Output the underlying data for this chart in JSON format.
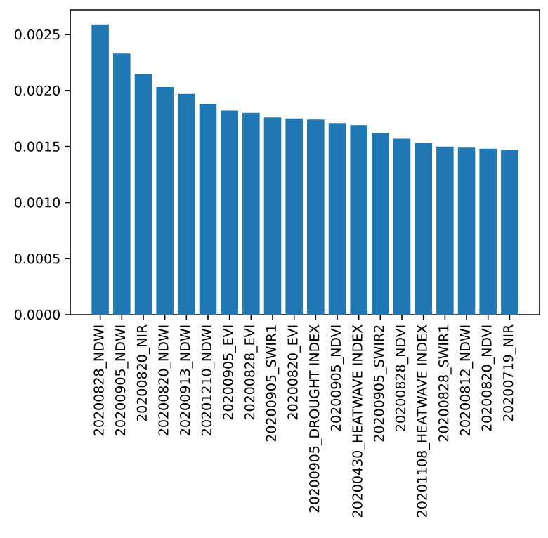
{
  "chart_data": {
    "type": "bar",
    "color": "#1f77b4",
    "categories": [
      "20200828_NDWI",
      "20200905_NDWI",
      "20200820_NIR",
      "20200820_NDWI",
      "20200913_NDWI",
      "20201210_NDWI",
      "20200905_EVI",
      "20200828_EVI",
      "20200905_SWIR1",
      "20200820_EVI",
      "20200905_DROUGHT INDEX",
      "20200905_NDVI",
      "20200430_HEATWAVE INDEX",
      "20200905_SWIR2",
      "20200828_NDVI",
      "20201108_HEATWAVE INDEX",
      "20200828_SWIR1",
      "20200812_NDWI",
      "20200820_NDVI",
      "20200719_NIR"
    ],
    "values": [
      0.00259,
      0.00233,
      0.00215,
      0.00203,
      0.00197,
      0.00188,
      0.00182,
      0.0018,
      0.00176,
      0.00175,
      0.00174,
      0.00171,
      0.00169,
      0.00162,
      0.00157,
      0.00153,
      0.0015,
      0.00149,
      0.00148,
      0.00147
    ],
    "ylim": [
      0,
      0.00272
    ],
    "yticks": [
      {
        "value": 0,
        "label": "0.0000"
      },
      {
        "value": 0.0005,
        "label": "0.0005"
      },
      {
        "value": 0.001,
        "label": "0.0010"
      },
      {
        "value": 0.0015,
        "label": "0.0015"
      },
      {
        "value": 0.002,
        "label": "0.0020"
      },
      {
        "value": 0.0025,
        "label": "0.0025"
      }
    ]
  }
}
